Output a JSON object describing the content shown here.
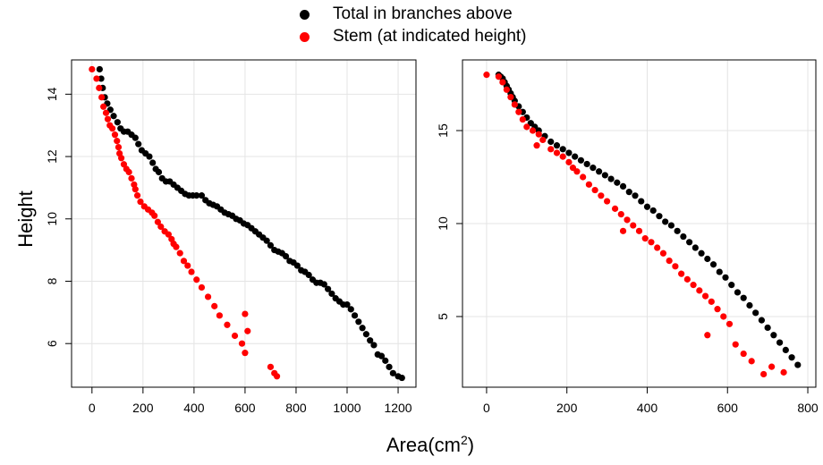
{
  "legend": [
    {
      "label": "Total in branches above",
      "color": "#000000"
    },
    {
      "label": "Stem (at indicated height)",
      "color": "#ff0000"
    }
  ],
  "shared_xlabel": {
    "base": "Area(cm",
    "sup": "2",
    "close": ")"
  },
  "shared_ylabel": "Height",
  "chart_data": [
    {
      "type": "scatter",
      "xlim": [
        -80,
        1270
      ],
      "ylim": [
        4.6,
        15.1
      ],
      "xticks": [
        0,
        200,
        400,
        600,
        800,
        1000,
        1200
      ],
      "yticks": [
        6,
        8,
        10,
        12,
        14
      ],
      "grid": true,
      "series": [
        {
          "name": "Total in branches above",
          "color": "#000000",
          "points": [
            [
              30,
              14.8
            ],
            [
              36,
              14.5
            ],
            [
              42,
              14.2
            ],
            [
              50,
              13.9
            ],
            [
              60,
              13.7
            ],
            [
              72,
              13.5
            ],
            [
              85,
              13.3
            ],
            [
              100,
              13.1
            ],
            [
              112,
              12.9
            ],
            [
              125,
              12.8
            ],
            [
              140,
              12.8
            ],
            [
              155,
              12.7
            ],
            [
              170,
              12.6
            ],
            [
              182,
              12.4
            ],
            [
              195,
              12.2
            ],
            [
              210,
              12.1
            ],
            [
              225,
              12.0
            ],
            [
              238,
              11.8
            ],
            [
              250,
              11.6
            ],
            [
              262,
              11.5
            ],
            [
              275,
              11.3
            ],
            [
              290,
              11.2
            ],
            [
              305,
              11.2
            ],
            [
              320,
              11.1
            ],
            [
              335,
              11.0
            ],
            [
              350,
              10.9
            ],
            [
              365,
              10.8
            ],
            [
              380,
              10.75
            ],
            [
              395,
              10.75
            ],
            [
              410,
              10.75
            ],
            [
              430,
              10.75
            ],
            [
              445,
              10.6
            ],
            [
              460,
              10.5
            ],
            [
              475,
              10.45
            ],
            [
              490,
              10.4
            ],
            [
              505,
              10.3
            ],
            [
              520,
              10.2
            ],
            [
              535,
              10.15
            ],
            [
              550,
              10.1
            ],
            [
              565,
              10.0
            ],
            [
              580,
              9.95
            ],
            [
              595,
              9.85
            ],
            [
              610,
              9.8
            ],
            [
              625,
              9.7
            ],
            [
              640,
              9.6
            ],
            [
              655,
              9.5
            ],
            [
              670,
              9.4
            ],
            [
              685,
              9.3
            ],
            [
              700,
              9.15
            ],
            [
              715,
              9.0
            ],
            [
              730,
              8.95
            ],
            [
              745,
              8.9
            ],
            [
              760,
              8.8
            ],
            [
              775,
              8.65
            ],
            [
              790,
              8.6
            ],
            [
              805,
              8.5
            ],
            [
              820,
              8.35
            ],
            [
              835,
              8.3
            ],
            [
              850,
              8.2
            ],
            [
              865,
              8.05
            ],
            [
              880,
              7.95
            ],
            [
              895,
              7.95
            ],
            [
              910,
              7.9
            ],
            [
              925,
              7.75
            ],
            [
              940,
              7.6
            ],
            [
              955,
              7.45
            ],
            [
              970,
              7.35
            ],
            [
              985,
              7.25
            ],
            [
              1000,
              7.25
            ],
            [
              1015,
              7.1
            ],
            [
              1030,
              6.9
            ],
            [
              1045,
              6.7
            ],
            [
              1060,
              6.5
            ],
            [
              1075,
              6.3
            ],
            [
              1090,
              6.1
            ],
            [
              1105,
              5.95
            ],
            [
              1120,
              5.65
            ],
            [
              1135,
              5.6
            ],
            [
              1150,
              5.45
            ],
            [
              1165,
              5.25
            ],
            [
              1180,
              5.05
            ],
            [
              1200,
              4.95
            ],
            [
              1215,
              4.9
            ]
          ]
        },
        {
          "name": "Stem (at indicated height)",
          "color": "#ff0000",
          "points": [
            [
              0,
              14.8
            ],
            [
              18,
              14.5
            ],
            [
              28,
              14.2
            ],
            [
              38,
              13.9
            ],
            [
              45,
              13.6
            ],
            [
              55,
              13.4
            ],
            [
              62,
              13.2
            ],
            [
              70,
              13.0
            ],
            [
              80,
              12.9
            ],
            [
              90,
              12.7
            ],
            [
              98,
              12.5
            ],
            [
              104,
              12.3
            ],
            [
              108,
              12.1
            ],
            [
              115,
              11.95
            ],
            [
              125,
              11.75
            ],
            [
              135,
              11.6
            ],
            [
              145,
              11.5
            ],
            [
              155,
              11.3
            ],
            [
              165,
              11.1
            ],
            [
              170,
              10.95
            ],
            [
              178,
              10.75
            ],
            [
              190,
              10.55
            ],
            [
              205,
              10.4
            ],
            [
              220,
              10.3
            ],
            [
              235,
              10.2
            ],
            [
              245,
              10.1
            ],
            [
              258,
              9.9
            ],
            [
              270,
              9.75
            ],
            [
              285,
              9.6
            ],
            [
              300,
              9.5
            ],
            [
              312,
              9.35
            ],
            [
              320,
              9.2
            ],
            [
              330,
              9.1
            ],
            [
              345,
              8.9
            ],
            [
              360,
              8.65
            ],
            [
              375,
              8.5
            ],
            [
              390,
              8.3
            ],
            [
              410,
              8.05
            ],
            [
              430,
              7.8
            ],
            [
              455,
              7.5
            ],
            [
              480,
              7.2
            ],
            [
              500,
              6.9
            ],
            [
              530,
              6.6
            ],
            [
              560,
              6.25
            ],
            [
              588,
              6.0
            ],
            [
              600,
              5.7
            ],
            [
              610,
              6.4
            ],
            [
              600,
              6.95
            ],
            [
              700,
              5.25
            ],
            [
              715,
              5.05
            ],
            [
              725,
              4.95
            ]
          ]
        }
      ]
    },
    {
      "type": "scatter",
      "xlim": [
        -60,
        820
      ],
      "ylim": [
        1.2,
        18.8
      ],
      "xticks": [
        0,
        200,
        400,
        600,
        800
      ],
      "yticks": [
        5,
        10,
        15
      ],
      "grid": true,
      "series": [
        {
          "name": "Total in branches above",
          "color": "#000000",
          "points": [
            [
              30,
              18.0
            ],
            [
              35,
              17.9
            ],
            [
              40,
              17.8
            ],
            [
              45,
              17.6
            ],
            [
              50,
              17.4
            ],
            [
              55,
              17.2
            ],
            [
              60,
              17.0
            ],
            [
              65,
              16.8
            ],
            [
              70,
              16.6
            ],
            [
              80,
              16.3
            ],
            [
              90,
              16.0
            ],
            [
              100,
              15.7
            ],
            [
              110,
              15.4
            ],
            [
              120,
              15.2
            ],
            [
              130,
              15.0
            ],
            [
              145,
              14.7
            ],
            [
              160,
              14.4
            ],
            [
              175,
              14.2
            ],
            [
              190,
              14.0
            ],
            [
              205,
              13.8
            ],
            [
              220,
              13.6
            ],
            [
              235,
              13.4
            ],
            [
              250,
              13.2
            ],
            [
              265,
              13.0
            ],
            [
              280,
              12.8
            ],
            [
              295,
              12.6
            ],
            [
              310,
              12.4
            ],
            [
              325,
              12.2
            ],
            [
              340,
              12.0
            ],
            [
              355,
              11.7
            ],
            [
              370,
              11.5
            ],
            [
              385,
              11.2
            ],
            [
              400,
              10.9
            ],
            [
              415,
              10.7
            ],
            [
              430,
              10.4
            ],
            [
              445,
              10.1
            ],
            [
              460,
              9.9
            ],
            [
              475,
              9.6
            ],
            [
              490,
              9.3
            ],
            [
              505,
              9.0
            ],
            [
              520,
              8.7
            ],
            [
              535,
              8.4
            ],
            [
              550,
              8.1
            ],
            [
              565,
              7.8
            ],
            [
              580,
              7.4
            ],
            [
              595,
              7.1
            ],
            [
              610,
              6.7
            ],
            [
              625,
              6.3
            ],
            [
              640,
              6.0
            ],
            [
              655,
              5.6
            ],
            [
              670,
              5.2
            ],
            [
              685,
              4.8
            ],
            [
              700,
              4.4
            ],
            [
              715,
              4.0
            ],
            [
              730,
              3.6
            ],
            [
              745,
              3.2
            ],
            [
              760,
              2.8
            ],
            [
              775,
              2.4
            ]
          ]
        },
        {
          "name": "Stem (at indicated height)",
          "color": "#ff0000",
          "points": [
            [
              0,
              18.0
            ],
            [
              30,
              17.9
            ],
            [
              40,
              17.6
            ],
            [
              50,
              17.2
            ],
            [
              60,
              16.8
            ],
            [
              70,
              16.4
            ],
            [
              80,
              16.0
            ],
            [
              90,
              15.6
            ],
            [
              100,
              15.2
            ],
            [
              115,
              15.0
            ],
            [
              130,
              14.8
            ],
            [
              140,
              14.5
            ],
            [
              125,
              14.2
            ],
            [
              160,
              14.0
            ],
            [
              175,
              13.8
            ],
            [
              190,
              13.6
            ],
            [
              205,
              13.3
            ],
            [
              215,
              13.0
            ],
            [
              225,
              12.8
            ],
            [
              240,
              12.5
            ],
            [
              255,
              12.1
            ],
            [
              270,
              11.8
            ],
            [
              285,
              11.5
            ],
            [
              300,
              11.2
            ],
            [
              320,
              10.8
            ],
            [
              335,
              10.5
            ],
            [
              350,
              10.2
            ],
            [
              365,
              9.9
            ],
            [
              340,
              9.6
            ],
            [
              380,
              9.6
            ],
            [
              395,
              9.2
            ],
            [
              410,
              9.0
            ],
            [
              425,
              8.7
            ],
            [
              440,
              8.4
            ],
            [
              455,
              8.0
            ],
            [
              470,
              7.7
            ],
            [
              485,
              7.3
            ],
            [
              500,
              7.0
            ],
            [
              515,
              6.7
            ],
            [
              530,
              6.4
            ],
            [
              545,
              6.1
            ],
            [
              560,
              5.8
            ],
            [
              575,
              5.4
            ],
            [
              590,
              5.0
            ],
            [
              605,
              4.6
            ],
            [
              550,
              4.0
            ],
            [
              620,
              3.5
            ],
            [
              640,
              3.0
            ],
            [
              660,
              2.6
            ],
            [
              690,
              1.9
            ],
            [
              710,
              2.3
            ],
            [
              740,
              2.0
            ]
          ]
        }
      ]
    }
  ]
}
